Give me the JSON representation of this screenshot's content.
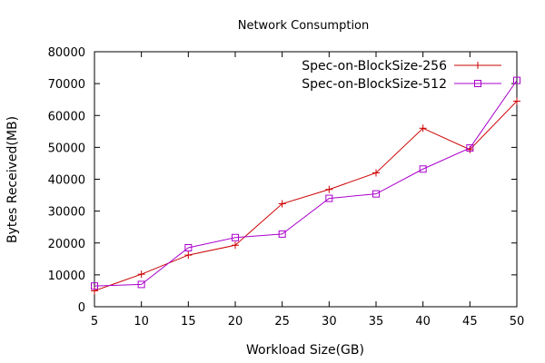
{
  "chart_data": {
    "type": "line",
    "title": "Network Consumption",
    "xlabel": "Workload Size(GB)",
    "ylabel": "Bytes Received(MB)",
    "x": [
      5,
      10,
      15,
      20,
      25,
      30,
      35,
      40,
      45,
      50
    ],
    "xlim": [
      5,
      50
    ],
    "ylim": [
      0,
      80000
    ],
    "x_ticks": [
      5,
      10,
      15,
      20,
      25,
      30,
      35,
      40,
      45,
      50
    ],
    "y_ticks": [
      0,
      10000,
      20000,
      30000,
      40000,
      50000,
      60000,
      70000,
      80000
    ],
    "grid": false,
    "legend_position": "top-right",
    "series": [
      {
        "name": "Spec-on-BlockSize-256",
        "color": "#cc0000",
        "marker": "plus",
        "values": [
          5000,
          10200,
          16200,
          19300,
          32300,
          36800,
          42000,
          56000,
          49300,
          64500
        ]
      },
      {
        "name": "Spec-on-BlockSize-512",
        "color": "#aa00cc",
        "marker": "square",
        "values": [
          6500,
          7000,
          18500,
          21700,
          22800,
          34000,
          35400,
          43200,
          49800,
          71000
        ]
      }
    ]
  }
}
